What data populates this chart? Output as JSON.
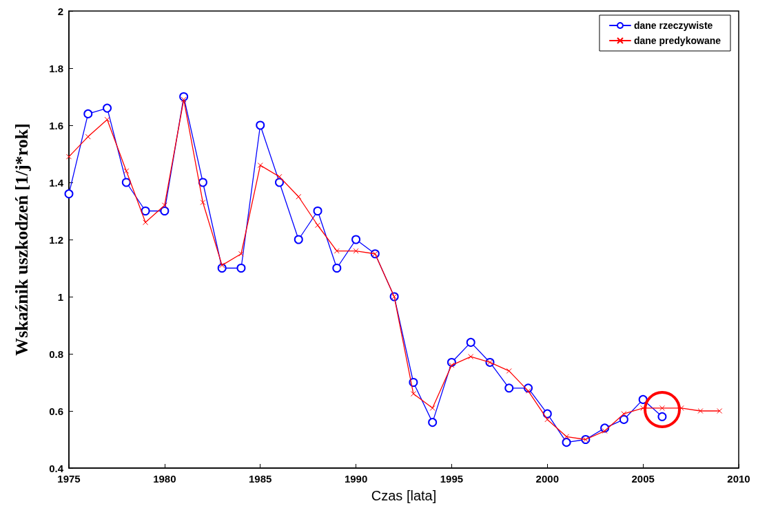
{
  "chart_data": {
    "type": "line",
    "xlabel": "Czas [lata]",
    "ylabel": "Wskaźnik uszkodzeń [1/j*rok]",
    "xlim": [
      1975,
      2010
    ],
    "xticks": [
      1975,
      1980,
      1985,
      1990,
      1995,
      2000,
      2005,
      2010
    ],
    "ylim": [
      0.4,
      2
    ],
    "yticks": [
      0.4,
      0.6,
      0.8,
      1,
      1.2,
      1.4,
      1.6,
      1.8,
      2
    ],
    "grid": false,
    "legend": "top right",
    "series": [
      {
        "name": "dane rzeczywiste",
        "color": "#0000ff",
        "marker": "circle",
        "x": [
          1975,
          1976,
          1977,
          1978,
          1979,
          1980,
          1981,
          1982,
          1983,
          1984,
          1985,
          1986,
          1987,
          1988,
          1989,
          1990,
          1991,
          1992,
          1993,
          1994,
          1995,
          1996,
          1997,
          1998,
          1999,
          2000,
          2001,
          2002,
          2003,
          2004,
          2005,
          2006
        ],
        "values": [
          1.36,
          1.64,
          1.66,
          1.4,
          1.3,
          1.3,
          1.7,
          1.4,
          1.1,
          1.1,
          1.6,
          1.4,
          1.2,
          1.3,
          1.1,
          1.2,
          1.15,
          1.0,
          0.7,
          0.56,
          0.77,
          0.84,
          0.77,
          0.68,
          0.68,
          0.59,
          0.49,
          0.5,
          0.54,
          0.57,
          0.64,
          0.58
        ]
      },
      {
        "name": "dane predykowane",
        "color": "#ff0000",
        "marker": "cross",
        "x": [
          1975,
          1976,
          1977,
          1978,
          1979,
          1980,
          1981,
          1982,
          1983,
          1984,
          1985,
          1986,
          1987,
          1988,
          1989,
          1990,
          1991,
          1992,
          1993,
          1994,
          1995,
          1996,
          1997,
          1998,
          1999,
          2000,
          2001,
          2002,
          2003,
          2004,
          2005,
          2006,
          2007,
          2008,
          2009
        ],
        "values": [
          1.49,
          1.56,
          1.62,
          1.44,
          1.26,
          1.32,
          1.69,
          1.33,
          1.11,
          1.15,
          1.46,
          1.42,
          1.35,
          1.25,
          1.16,
          1.16,
          1.15,
          1.0,
          0.66,
          0.61,
          0.76,
          0.79,
          0.77,
          0.74,
          0.67,
          0.57,
          0.51,
          0.5,
          0.53,
          0.59,
          0.61,
          0.61,
          0.61,
          0.6,
          0.6
        ]
      }
    ]
  }
}
